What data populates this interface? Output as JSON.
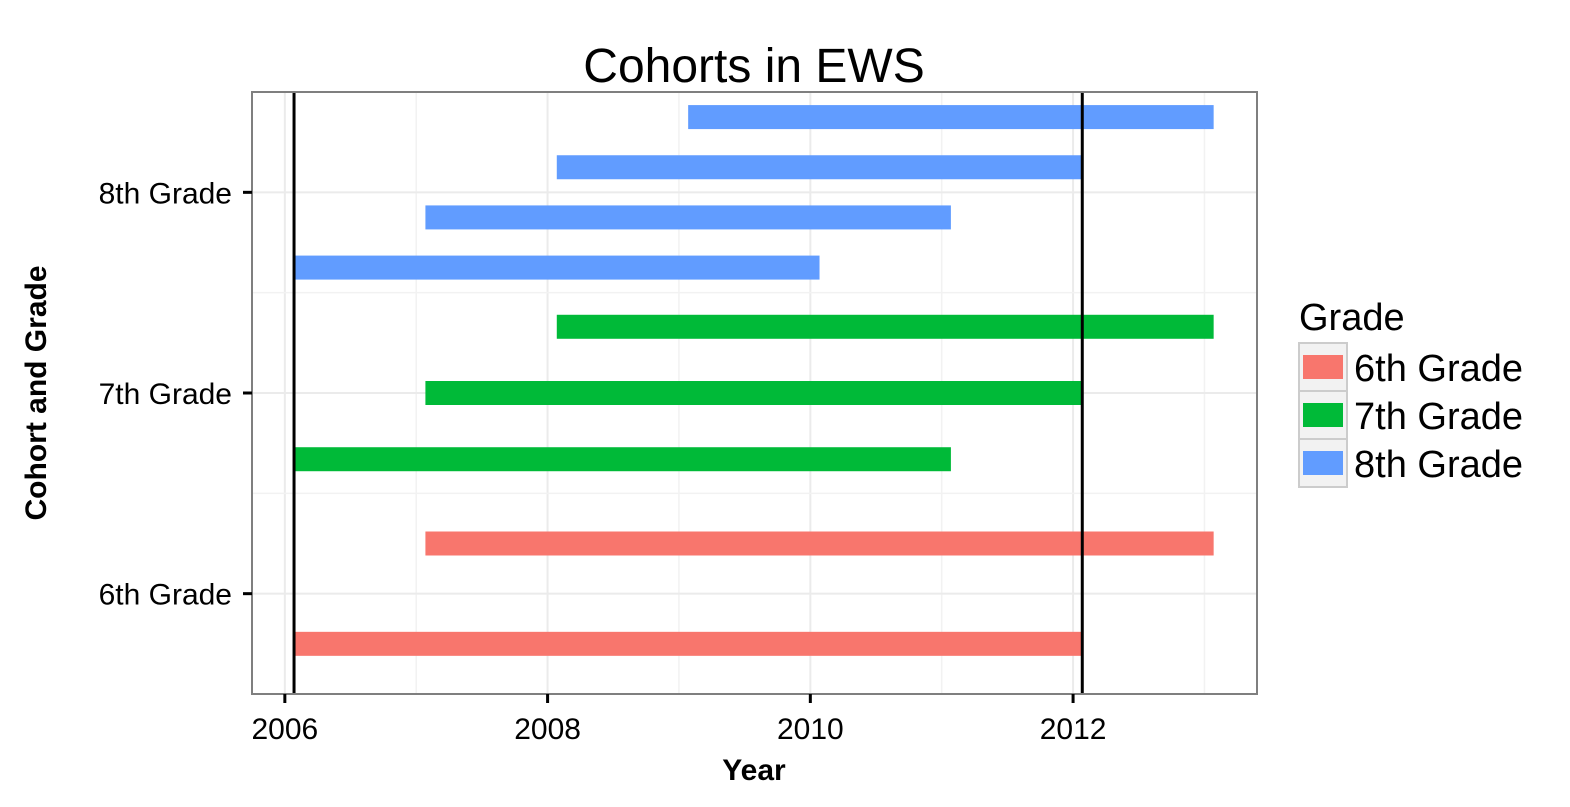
{
  "chart_data": {
    "type": "bar",
    "orientation": "horizontal-range",
    "title": "Cohorts in EWS",
    "xlabel": "Year",
    "ylabel": "Cohort and Grade",
    "xlim": [
      2005.75,
      2013.4
    ],
    "x_ticks": [
      2006,
      2008,
      2010,
      2012
    ],
    "y_categories": [
      "6th Grade",
      "7th Grade",
      "8th Grade"
    ],
    "grid": true,
    "vlines": [
      2006.07,
      2012.07
    ],
    "legend": {
      "title": "Grade",
      "placement": "right",
      "entries": [
        {
          "label": "6th Grade",
          "color": "#F8766D"
        },
        {
          "label": "7th Grade",
          "color": "#00BA38"
        },
        {
          "label": "8th Grade",
          "color": "#619CFF"
        }
      ]
    },
    "series": [
      {
        "grade": "6th Grade",
        "color": "#F8766D",
        "segments": [
          {
            "start": 2006.07,
            "end": 2012.07,
            "offset": -0.25
          },
          {
            "start": 2007.07,
            "end": 2013.07,
            "offset": 0.25
          }
        ]
      },
      {
        "grade": "7th Grade",
        "color": "#00BA38",
        "segments": [
          {
            "start": 2006.07,
            "end": 2011.07,
            "offset": -0.33
          },
          {
            "start": 2007.07,
            "end": 2012.07,
            "offset": 0.0
          },
          {
            "start": 2008.07,
            "end": 2013.07,
            "offset": 0.33
          }
        ]
      },
      {
        "grade": "8th Grade",
        "color": "#619CFF",
        "segments": [
          {
            "start": 2006.07,
            "end": 2010.07,
            "offset": -0.375
          },
          {
            "start": 2007.07,
            "end": 2011.07,
            "offset": -0.125
          },
          {
            "start": 2008.07,
            "end": 2012.07,
            "offset": 0.125
          },
          {
            "start": 2009.07,
            "end": 2013.07,
            "offset": 0.375
          }
        ]
      }
    ]
  }
}
